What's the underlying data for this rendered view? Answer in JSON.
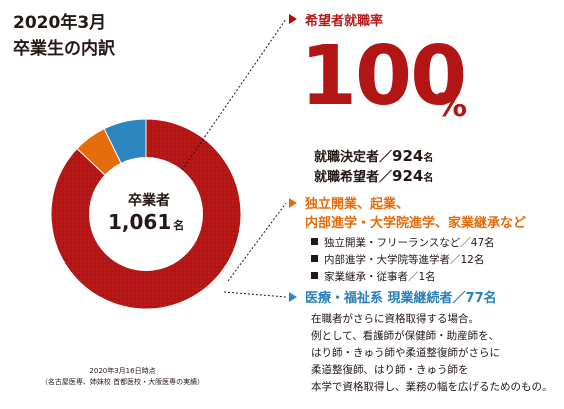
{
  "title": {
    "line1": "2020年3月",
    "line2": "卒業生の内訳"
  },
  "center": {
    "label": "卒業者",
    "value": "1,061",
    "unit": "名"
  },
  "employment": {
    "label": "希望者就職率",
    "rate": "100",
    "rate_unit": "%",
    "employed_label": "就職決定者／",
    "employed_value": "924",
    "employed_unit": "名",
    "applicants_label": "就職希望者／",
    "applicants_value": "924",
    "applicants_unit": "名"
  },
  "further": {
    "title_line1": "独立開業、起業、",
    "title_line2": "内部進学・大学院進学、家業継承など",
    "items": [
      "独立開業・フリーランスなど／47名",
      "内部進学・大学院等進学者／12名",
      "家業継承・従事者／1名"
    ]
  },
  "medical": {
    "title": "医療・福祉系 現業継続者／77名",
    "notes": [
      "在職者がさらに資格取得する場合。",
      "例として、看護師が保健師・助産師を、",
      "はり師・きゅう師や柔道整復師がさらに",
      "柔道整復師、はり師・きゅう師を",
      "本学で資格取得し、業務の幅を広げるためのもの。"
    ]
  },
  "footnote": {
    "line1": "2020年3月16日時点",
    "line2": "（名古屋医専、姉妹校 首都医校・大阪医専の実績）"
  },
  "colors": {
    "employed": "#b31515",
    "further": "#e46c0a",
    "medical": "#2e86c1",
    "leader": "#231815"
  },
  "chart_data": {
    "type": "pie",
    "subtype": "donut",
    "total": 1061,
    "slices": [
      {
        "value": 924,
        "color": "#b31515"
      },
      {
        "value": 60,
        "color": "#e46c0a"
      },
      {
        "value": 77,
        "color": "#2e86c1"
      }
    ]
  }
}
